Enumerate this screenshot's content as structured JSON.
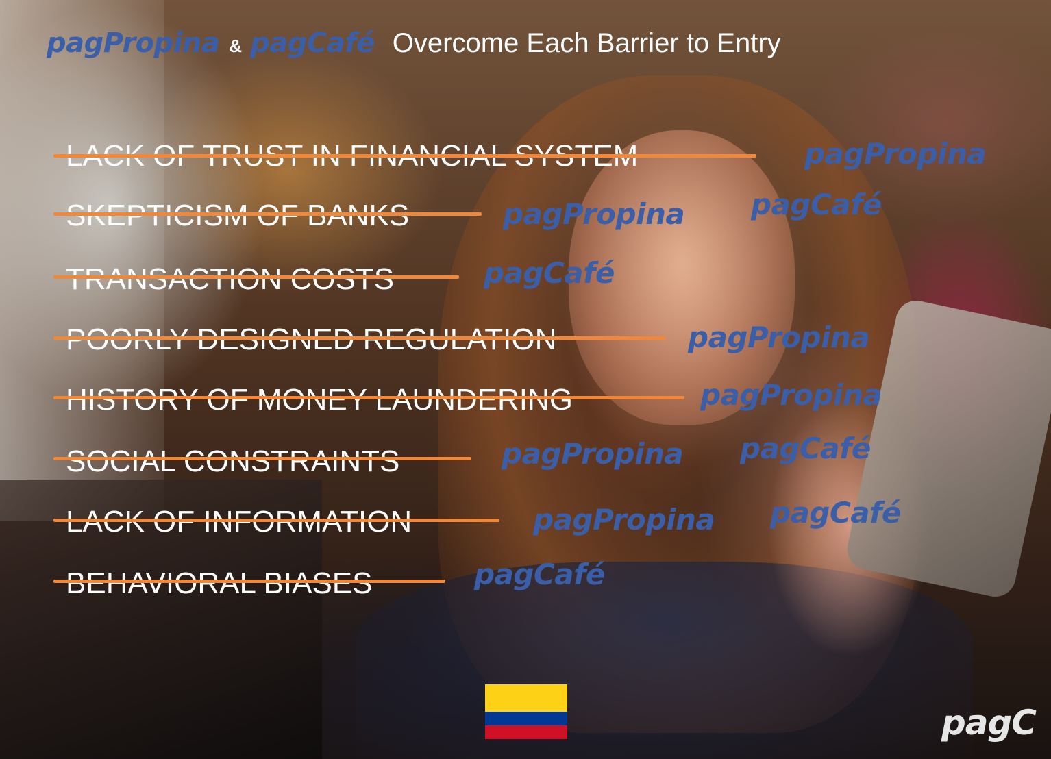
{
  "header": {
    "brand_1": "pagPropina",
    "amp": "&",
    "brand_2": "pagCafé",
    "title": "Overcome Each Barrier to Entry"
  },
  "barriers": [
    {
      "label": "LACK OF TRUST IN FINANCIAL SYSTEM",
      "solutions": [
        "pagPropina"
      ]
    },
    {
      "label": "SKEPTICISM OF BANKS",
      "solutions": [
        "pagPropina",
        "pagCafé"
      ]
    },
    {
      "label": "TRANSACTION COSTS",
      "solutions": [
        "pagCafé"
      ]
    },
    {
      "label": "POORLY DESIGNED REGULATION",
      "solutions": [
        "pagPropina"
      ]
    },
    {
      "label": "HISTORY OF MONEY LAUNDERING",
      "solutions": [
        "pagPropina"
      ]
    },
    {
      "label": "SOCIAL CONSTRAINTS",
      "solutions": [
        "pagPropina",
        "pagCafé"
      ]
    },
    {
      "label": "LACK OF INFORMATION",
      "solutions": [
        "pagPropina",
        "pagCafé"
      ]
    },
    {
      "label": "BEHAVIORAL BIASES",
      "solutions": [
        "pagCafé"
      ]
    }
  ],
  "flag": {
    "name": "colombia-flag",
    "colors": [
      "#fcd116",
      "#003893",
      "#ce1126"
    ]
  },
  "colors": {
    "brand": "#3a5fa8",
    "strike": "#f0883c",
    "text": "#ffffff"
  },
  "logo": "pagC"
}
